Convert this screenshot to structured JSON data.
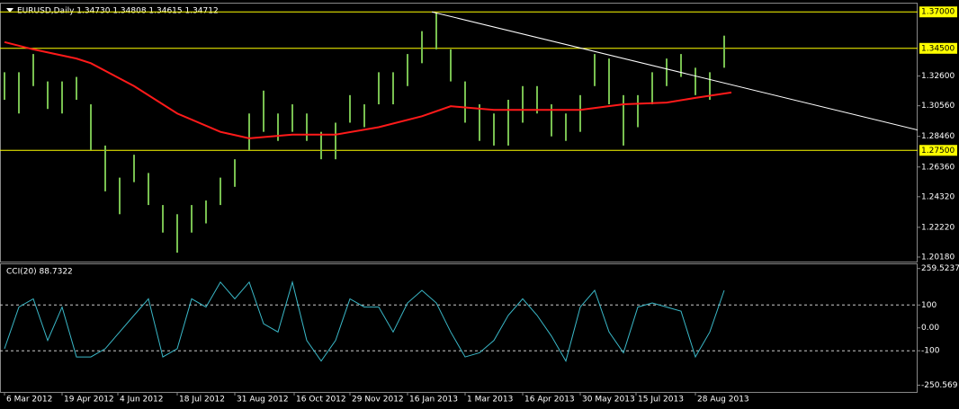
{
  "chart_data": [
    {
      "type": "range",
      "title": "EURUSD,Daily  1.34730 1.34808 1.34615 1.34712",
      "x": [
        0,
        8,
        16,
        24,
        32,
        40,
        48,
        56,
        64,
        72,
        80,
        88,
        96,
        104,
        112,
        120,
        128,
        136,
        144,
        152,
        160,
        168,
        176,
        184,
        192,
        200,
        208,
        216,
        224,
        232,
        240,
        248,
        256,
        264,
        272,
        280,
        288,
        296,
        304,
        312,
        320,
        328,
        336,
        344,
        352,
        360,
        368,
        376,
        384,
        392,
        400
      ],
      "high": [
        1.3286,
        1.3286,
        1.3411,
        1.3223,
        1.3223,
        1.3254,
        1.3066,
        1.2783,
        1.2563,
        1.272,
        1.2595,
        1.2375,
        1.2312,
        1.2375,
        1.2406,
        1.2563,
        1.2689,
        1.3003,
        1.316,
        1.3003,
        1.3066,
        1.3003,
        1.2877,
        1.294,
        1.3129,
        1.3066,
        1.3286,
        1.3286,
        1.3411,
        1.3568,
        1.3694,
        1.3443,
        1.3223,
        1.3066,
        1.3003,
        1.3097,
        1.3191,
        1.3191,
        1.3066,
        1.3003,
        1.3129,
        1.3411,
        1.338,
        1.3129,
        1.3129,
        1.3286,
        1.338,
        1.3411,
        1.3317,
        1.3286,
        1.3537
      ],
      "low": [
        1.3097,
        1.3003,
        1.3191,
        1.3034,
        1.3003,
        1.3097,
        1.2752,
        1.2469,
        1.2312,
        1.2532,
        1.2375,
        1.2186,
        1.2048,
        1.2186,
        1.2249,
        1.2375,
        1.25,
        1.2752,
        1.2877,
        1.2815,
        1.2877,
        1.2815,
        1.2689,
        1.2689,
        1.294,
        1.2909,
        1.3066,
        1.3066,
        1.3191,
        1.3348,
        1.3443,
        1.3223,
        1.294,
        1.2815,
        1.2783,
        1.2783,
        1.294,
        1.3003,
        1.2846,
        1.2815,
        1.2877,
        1.3191,
        1.3066,
        1.2783,
        1.2909,
        1.3066,
        1.3191,
        1.3254,
        1.3129,
        1.3097,
        1.3317
      ],
      "color": "#78c050",
      "overlays": [
        {
          "type": "line",
          "color": "#ff1a1a",
          "x": [
            0,
            16,
            40,
            48,
            72,
            96,
            120,
            136,
            160,
            184,
            208,
            232,
            248,
            272,
            296,
            320,
            344,
            368,
            384,
            404
          ],
          "values": [
            1.3493,
            1.3443,
            1.338,
            1.3348,
            1.3191,
            1.3003,
            1.2877,
            1.2833,
            1.2858,
            1.2858,
            1.2909,
            1.2984,
            1.3053,
            1.3028,
            1.3028,
            1.3028,
            1.3066,
            1.3078,
            1.311,
            1.3147
          ]
        },
        {
          "type": "line",
          "color": "#ffffff",
          "x": [
            237.5,
            507.5
          ],
          "values": [
            1.37,
            1.289
          ]
        }
      ],
      "levels": [
        {
          "value": 1.37,
          "label": "1.37000"
        },
        {
          "value": 1.345,
          "label": "1.34500"
        },
        {
          "value": 1.275,
          "label": "1.27500"
        }
      ],
      "level_color": "#ffff00",
      "xlim": [
        -2.5,
        507.5
      ],
      "ylim": [
        1.1987,
        1.3757
      ],
      "yticks": [
        {
          "value": 1.326,
          "label": "1.32600"
        },
        {
          "value": 1.3056,
          "label": "1.30560"
        },
        {
          "value": 1.2846,
          "label": "1.28460"
        },
        {
          "value": 1.2636,
          "label": "1.26360"
        },
        {
          "value": 1.2432,
          "label": "1.24320"
        },
        {
          "value": 1.2222,
          "label": "1.22220"
        },
        {
          "value": 1.2018,
          "label": "1.20180"
        }
      ]
    },
    {
      "type": "line",
      "title": "CCI(20) 88.7322",
      "x": [
        0,
        8,
        16,
        24,
        32,
        40,
        48,
        56,
        64,
        72,
        80,
        88,
        96,
        104,
        112,
        120,
        128,
        136,
        144,
        152,
        160,
        168,
        176,
        184,
        192,
        200,
        208,
        216,
        224,
        232,
        240,
        248,
        256,
        264,
        272,
        280,
        288,
        296,
        304,
        312,
        320,
        328,
        336,
        344,
        352,
        360,
        368,
        376,
        384,
        392,
        400
      ],
      "values": [
        -91,
        91,
        127,
        -55,
        91,
        -127,
        -127,
        -91,
        -18,
        55,
        127,
        -127,
        -91,
        127,
        91,
        200,
        127,
        200,
        18,
        -18,
        200,
        -55,
        -145,
        -55,
        127,
        91,
        91,
        -18,
        109,
        164,
        109,
        -18,
        -127,
        -109,
        -55,
        55,
        127,
        55,
        -36,
        -145,
        91,
        164,
        -18,
        -109,
        91,
        109,
        91,
        73,
        -127,
        -18,
        164
      ],
      "color": "#3ab8c8",
      "levels": [
        100,
        -100
      ],
      "xlim": [
        -2.5,
        507.5
      ],
      "ylim": [
        -280,
        278
      ],
      "yticks": [
        259.5237,
        100,
        {
          "value": 0,
          "label": "0.00"
        },
        -100,
        -250.569
      ],
      "xticks": [
        {
          "value": 0,
          "label": "6 Mar 2012"
        },
        {
          "value": 32,
          "label": "19 Apr 2012"
        },
        {
          "value": 63,
          "label": "4 Jun 2012"
        },
        {
          "value": 96,
          "label": "18 Jul 2012"
        },
        {
          "value": 128,
          "label": "31 Aug 2012"
        },
        {
          "value": 161,
          "label": "16 Oct 2012"
        },
        {
          "value": 192,
          "label": "29 Nov 2012"
        },
        {
          "value": 224,
          "label": "16 Jan 2013"
        },
        {
          "value": 256,
          "label": "1 Mar 2013"
        },
        {
          "value": 288,
          "label": "16 Apr 2013"
        },
        {
          "value": 320,
          "label": "30 May 2013"
        },
        {
          "value": 351,
          "label": "15 Jul 2013"
        },
        {
          "value": 384,
          "label": "28 Aug 2013"
        }
      ]
    }
  ]
}
